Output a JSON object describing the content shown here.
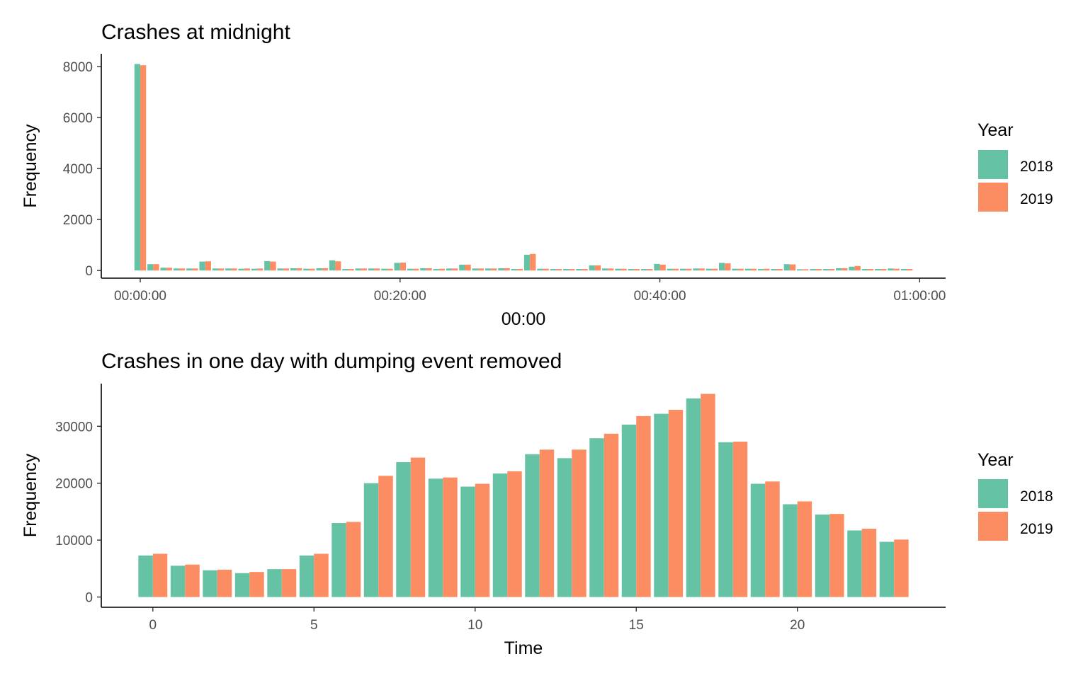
{
  "colors": {
    "y2018": "#66c2a5",
    "y2019": "#fc8d62"
  },
  "chart_data": [
    {
      "type": "bar",
      "title": "Crashes at midnight",
      "xlabel": "00:00",
      "ylabel": "Frequency",
      "x_unit": "minutes after midnight",
      "xlim": [
        -3,
        62
      ],
      "ylim": [
        -300,
        8500
      ],
      "x_ticks": [
        0,
        20,
        40,
        60
      ],
      "x_tick_labels": [
        "00:00:00",
        "00:20:00",
        "00:40:00",
        "01:00:00"
      ],
      "y_ticks": [
        0,
        2000,
        4000,
        6000,
        8000
      ],
      "y_tick_labels": [
        "0",
        "2000",
        "4000",
        "6000",
        "8000"
      ],
      "legend": {
        "title": "Year",
        "position": "right"
      },
      "x": [
        0,
        1,
        2,
        3,
        4,
        5,
        6,
        7,
        8,
        9,
        10,
        11,
        12,
        13,
        14,
        15,
        16,
        17,
        18,
        19,
        20,
        21,
        22,
        23,
        24,
        25,
        26,
        27,
        28,
        29,
        30,
        31,
        32,
        33,
        34,
        35,
        36,
        37,
        38,
        39,
        40,
        41,
        42,
        43,
        44,
        45,
        46,
        47,
        48,
        49,
        50,
        51,
        52,
        53,
        54,
        55,
        56,
        57,
        58,
        59
      ],
      "series": [
        {
          "name": "2018",
          "color_key": "y2018",
          "values": [
            8100,
            250,
            110,
            80,
            80,
            350,
            80,
            80,
            70,
            70,
            370,
            80,
            90,
            70,
            90,
            400,
            60,
            80,
            80,
            70,
            300,
            70,
            90,
            60,
            80,
            230,
            80,
            80,
            90,
            60,
            620,
            70,
            60,
            60,
            60,
            200,
            80,
            70,
            60,
            60,
            260,
            70,
            70,
            80,
            70,
            300,
            70,
            70,
            60,
            60,
            250,
            50,
            60,
            60,
            90,
            150,
            60,
            60,
            80,
            60
          ]
        },
        {
          "name": "2019",
          "color_key": "y2019",
          "values": [
            8050,
            250,
            110,
            80,
            80,
            360,
            80,
            80,
            80,
            80,
            350,
            80,
            90,
            70,
            90,
            360,
            60,
            80,
            80,
            70,
            310,
            70,
            90,
            70,
            80,
            230,
            80,
            80,
            90,
            60,
            650,
            70,
            60,
            60,
            60,
            200,
            80,
            70,
            60,
            60,
            230,
            70,
            70,
            80,
            70,
            280,
            70,
            70,
            70,
            60,
            240,
            50,
            60,
            60,
            90,
            180,
            60,
            60,
            70,
            60
          ]
        }
      ]
    },
    {
      "type": "bar",
      "title": "Crashes in one day with dumping event removed",
      "xlabel": "Time",
      "ylabel": "Frequency",
      "xlim": [
        -1.6,
        24.6
      ],
      "ylim": [
        -1800,
        37500
      ],
      "x_ticks": [
        0,
        5,
        10,
        15,
        20
      ],
      "x_tick_labels": [
        "0",
        "5",
        "10",
        "15",
        "20"
      ],
      "y_ticks": [
        0,
        10000,
        20000,
        30000
      ],
      "y_tick_labels": [
        "0",
        "10000",
        "20000",
        "30000"
      ],
      "legend": {
        "title": "Year",
        "position": "right"
      },
      "x": [
        0,
        1,
        2,
        3,
        4,
        5,
        6,
        7,
        8,
        9,
        10,
        11,
        12,
        13,
        14,
        15,
        16,
        17,
        18,
        19,
        20,
        21,
        22,
        23
      ],
      "series": [
        {
          "name": "2018",
          "color_key": "y2018",
          "values": [
            7300,
            5500,
            4700,
            4200,
            4900,
            7300,
            13000,
            20000,
            23700,
            20800,
            19400,
            21700,
            25100,
            24400,
            27900,
            30300,
            32200,
            34900,
            27200,
            19900,
            16300,
            14500,
            11700,
            9700
          ]
        },
        {
          "name": "2019",
          "color_key": "y2019",
          "values": [
            7600,
            5700,
            4800,
            4400,
            4900,
            7600,
            13200,
            21300,
            24500,
            21000,
            19900,
            22100,
            25900,
            25900,
            28700,
            31800,
            32900,
            35700,
            27300,
            20300,
            16800,
            14600,
            12000,
            10100
          ]
        }
      ]
    }
  ]
}
